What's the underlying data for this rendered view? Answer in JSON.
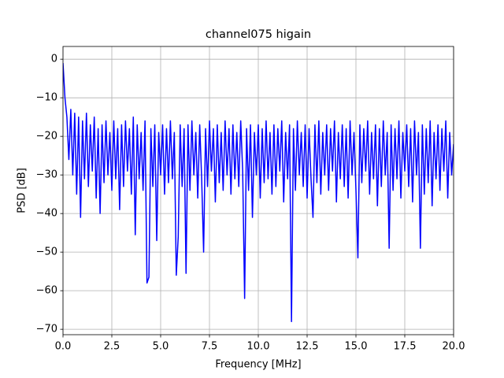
{
  "chart_data": {
    "type": "line",
    "title": "channel075 higain",
    "x_label": "Frequency [MHz]",
    "y_label": "PSD [dB]",
    "xlim": [
      0,
      20
    ],
    "ylim": [
      -71.4,
      3.3
    ],
    "grid": true,
    "xticks": [
      {
        "value": 0,
        "label": "0.0"
      },
      2.5,
      {
        "value": 5,
        "label": "5.0"
      },
      7.5,
      {
        "value": 10,
        "label": "10.0"
      },
      12.5,
      {
        "value": 15,
        "label": "15.0"
      },
      17.5,
      {
        "value": 20,
        "label": "20.0"
      }
    ],
    "yticks": [
      0,
      {
        "value": -10,
        "label": "−10"
      },
      {
        "value": -20,
        "label": "−20"
      },
      {
        "value": -30,
        "label": "−30"
      },
      {
        "value": -40,
        "label": "−40"
      },
      {
        "value": -50,
        "label": "−50"
      },
      {
        "value": -60,
        "label": "−60"
      },
      {
        "value": -70,
        "label": "−70"
      }
    ],
    "x": [
      0,
      0.1,
      0.2,
      0.3,
      0.4,
      0.5,
      0.6,
      0.7,
      0.8,
      0.9,
      1,
      1.1,
      1.2,
      1.3,
      1.4,
      1.5,
      1.6,
      1.7,
      1.8,
      1.9,
      2,
      2.1,
      2.2,
      2.3,
      2.4,
      2.5,
      2.6,
      2.7,
      2.8,
      2.9,
      3,
      3.1,
      3.2,
      3.3,
      3.4,
      3.5,
      3.6,
      3.7,
      3.8,
      3.9,
      4,
      4.1,
      4.2,
      4.3,
      4.4,
      4.5,
      4.6,
      4.7,
      4.8,
      4.9,
      5,
      5.1,
      5.2,
      5.3,
      5.4,
      5.5,
      5.6,
      5.7,
      5.8,
      5.9,
      6,
      6.1,
      6.2,
      6.3,
      6.4,
      6.5,
      6.6,
      6.7,
      6.8,
      6.9,
      7,
      7.1,
      7.2,
      7.3,
      7.4,
      7.5,
      7.6,
      7.7,
      7.8,
      7.9,
      8,
      8.1,
      8.2,
      8.3,
      8.4,
      8.5,
      8.6,
      8.7,
      8.8,
      8.9,
      9,
      9.1,
      9.2,
      9.3,
      9.4,
      9.5,
      9.6,
      9.7,
      9.8,
      9.9,
      10,
      10.1,
      10.2,
      10.3,
      10.4,
      10.5,
      10.6,
      10.7,
      10.8,
      10.9,
      11,
      11.1,
      11.2,
      11.3,
      11.4,
      11.5,
      11.6,
      11.7,
      11.8,
      11.9,
      12,
      12.1,
      12.2,
      12.3,
      12.4,
      12.5,
      12.6,
      12.7,
      12.8,
      12.9,
      13,
      13.1,
      13.2,
      13.3,
      13.4,
      13.5,
      13.6,
      13.7,
      13.8,
      13.9,
      14,
      14.1,
      14.2,
      14.3,
      14.4,
      14.5,
      14.6,
      14.7,
      14.8,
      14.9,
      15,
      15.1,
      15.2,
      15.3,
      15.4,
      15.5,
      15.6,
      15.7,
      15.8,
      15.9,
      16,
      16.1,
      16.2,
      16.3,
      16.4,
      16.5,
      16.6,
      16.7,
      16.8,
      16.9,
      17,
      17.1,
      17.2,
      17.3,
      17.4,
      17.5,
      17.6,
      17.7,
      17.8,
      17.9,
      18,
      18.1,
      18.2,
      18.3,
      18.4,
      18.5,
      18.6,
      18.7,
      18.8,
      18.9,
      19,
      19.1,
      19.2,
      19.3,
      19.4,
      19.5,
      19.6,
      19.7,
      19.8,
      19.9,
      20
    ],
    "series": [
      {
        "name": "PSD",
        "color": "#0000ff",
        "values": [
          -1,
          -10,
          -15,
          -26,
          -13,
          -30,
          -14,
          -35,
          -15,
          -41,
          -16,
          -31,
          -14,
          -33,
          -17,
          -29,
          -15,
          -36,
          -18,
          -40,
          -17,
          -32,
          -16,
          -30,
          -19,
          -34,
          -16,
          -31,
          -18,
          -39,
          -17,
          -33,
          -16,
          -29,
          -18,
          -35,
          -15,
          -45.5,
          -17,
          -31,
          -19,
          -34,
          -16,
          -58,
          -56.5,
          -18,
          -33,
          -17,
          -47,
          -19,
          -30,
          -17,
          -35,
          -18,
          -32,
          -16,
          -31,
          -19,
          -56,
          -46,
          -17,
          -33,
          -18,
          -55.5,
          -17,
          -34,
          -16,
          -30,
          -19,
          -36,
          -17,
          -31,
          -50,
          -18,
          -33,
          -16,
          -29,
          -18,
          -37,
          -17,
          -32,
          -19,
          -34,
          -16,
          -30,
          -18,
          -35,
          -17,
          -31,
          -19,
          -33,
          -16,
          -29,
          -62,
          -18,
          -34,
          -17,
          -41,
          -19,
          -30,
          -17,
          -36,
          -18,
          -32,
          -16,
          -31,
          -19,
          -35,
          -17,
          -33,
          -18,
          -29,
          -16,
          -37,
          -19,
          -31,
          -17,
          -68,
          -18,
          -34,
          -16,
          -30,
          -19,
          -33,
          -17,
          -36,
          -18,
          -31,
          -41,
          -17,
          -32,
          -16,
          -35,
          -19,
          -30,
          -17,
          -34,
          -18,
          -29,
          -16,
          -37,
          -19,
          -31,
          -17,
          -33,
          -18,
          -36,
          -16,
          -30,
          -19,
          -34,
          -51.5,
          -17,
          -32,
          -18,
          -29,
          -16,
          -35,
          -19,
          -31,
          -17,
          -38,
          -18,
          -33,
          -16,
          -30,
          -19,
          -49,
          -17,
          -34,
          -18,
          -31,
          -16,
          -36,
          -19,
          -29,
          -17,
          -33,
          -18,
          -37,
          -16,
          -30,
          -19,
          -49,
          -17,
          -35,
          -18,
          -32,
          -16,
          -38,
          -19,
          -31,
          -17,
          -34,
          -18,
          -29,
          -16,
          -36,
          -19,
          -30,
          -22
        ]
      }
    ]
  }
}
